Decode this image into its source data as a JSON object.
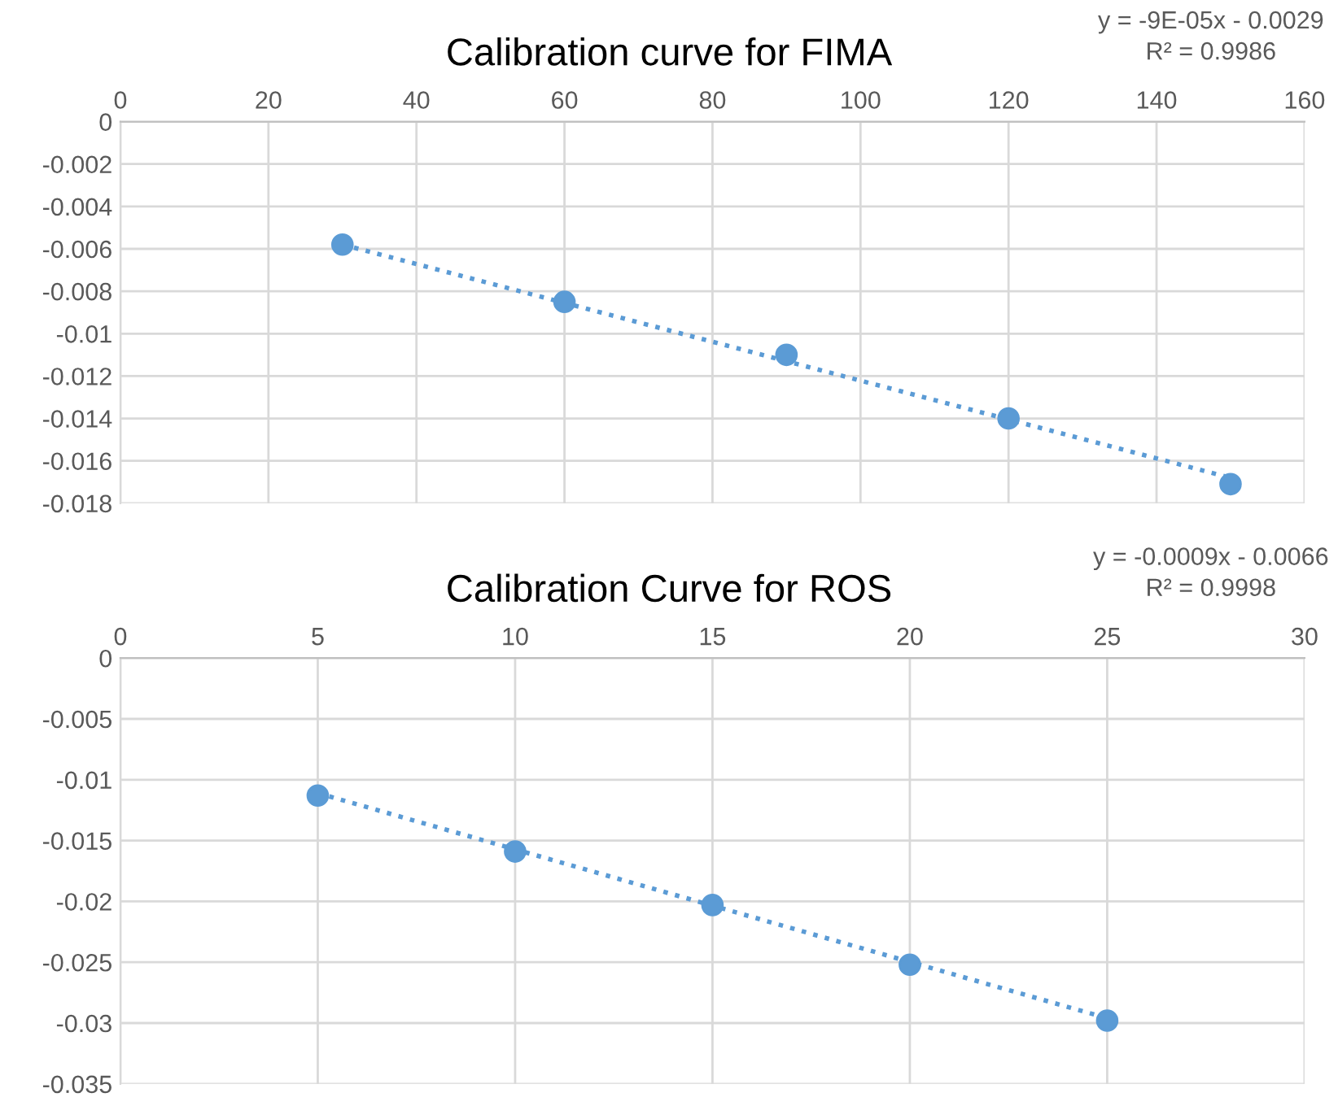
{
  "chart_data": [
    {
      "type": "scatter",
      "title": "Calibration curve for FIMA",
      "annotations": [
        "y = -9E-05x - 0.0029",
        "R² = 0.9986"
      ],
      "series": [
        {
          "color": "#5b9bd5",
          "x": [
            30,
            60,
            90,
            120,
            150
          ],
          "values": [
            -0.0058,
            -0.0085,
            -0.011,
            -0.014,
            -0.0171
          ],
          "marker": "circle"
        },
        {
          "type": "line",
          "color": "#5b9bd5",
          "x": [
            30,
            150
          ],
          "values": [
            -0.0058,
            -0.0168
          ],
          "line_style": "dotted",
          "marker": "none"
        }
      ],
      "xlim": [
        0,
        160
      ],
      "xticks": [
        0,
        20,
        40,
        60,
        80,
        100,
        120,
        140,
        160
      ],
      "ylim": [
        -0.018,
        0
      ],
      "yticks": [
        0,
        -0.002,
        -0.004,
        -0.006,
        -0.008,
        -0.01,
        -0.012,
        -0.014,
        -0.016,
        -0.018
      ],
      "grid": true,
      "legend": false
    },
    {
      "type": "scatter",
      "title": "Calibration Curve for ROS",
      "annotations": [
        "y = -0.0009x - 0.0066",
        "R² = 0.9998"
      ],
      "series": [
        {
          "color": "#5b9bd5",
          "x": [
            5,
            10,
            15,
            20,
            25
          ],
          "values": [
            -0.0113,
            -0.0159,
            -0.0203,
            -0.0252,
            -0.0298
          ],
          "marker": "circle"
        },
        {
          "type": "line",
          "color": "#5b9bd5",
          "x": [
            5,
            25
          ],
          "values": [
            -0.0111,
            -0.0296
          ],
          "line_style": "dotted",
          "marker": "none"
        }
      ],
      "xlim": [
        0,
        30
      ],
      "xticks": [
        0,
        5,
        10,
        15,
        20,
        25,
        30
      ],
      "ylim": [
        -0.035,
        0
      ],
      "yticks": [
        0,
        -0.005,
        -0.01,
        -0.015,
        -0.02,
        -0.025,
        -0.03,
        -0.035
      ],
      "grid": true,
      "legend": false
    }
  ]
}
